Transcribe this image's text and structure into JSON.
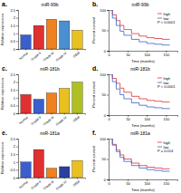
{
  "chart_data": [
    {
      "type": "bar",
      "panel": "a.",
      "title": "miR-99b",
      "y_label": "Relative expression",
      "categories": [
        "Normal",
        "Grade II",
        "Grade III",
        "Grade IV",
        "GBM"
      ],
      "values": [
        0.9,
        1.5,
        1.9,
        1.8,
        1.2
      ],
      "colors": [
        "#3a5fcd",
        "#e03030",
        "#f08020",
        "#4a90d0",
        "#e8c020"
      ],
      "ylim": [
        0,
        2.5
      ],
      "yticks": [
        0,
        0.5,
        1,
        1.5,
        2,
        2.5
      ]
    },
    {
      "type": "line",
      "panel": "b.",
      "title": "miR-99b",
      "annotation": "P < 0.0001",
      "x_label": "Time (months)",
      "y_label": "Percent survival",
      "x": [
        0,
        10,
        20,
        30,
        40,
        60,
        80,
        100,
        120,
        140,
        160
      ],
      "series": [
        {
          "name": "high",
          "color": "#e03030",
          "line_style": "step",
          "values": [
            100,
            88,
            74,
            62,
            52,
            42,
            36,
            32,
            30,
            28,
            28
          ]
        },
        {
          "name": "low",
          "color": "#3a5fcd",
          "line_style": "step",
          "values": [
            100,
            80,
            62,
            48,
            38,
            28,
            22,
            18,
            16,
            14,
            14
          ]
        }
      ],
      "xlim": [
        0,
        180
      ],
      "xticks": [
        0,
        50,
        100,
        150
      ],
      "ylim": [
        0,
        100
      ],
      "yticks": [
        0,
        50,
        100
      ],
      "legend": "upper right"
    },
    {
      "type": "bar",
      "panel": "c.",
      "title": "miR-181b",
      "y_label": "Relative expression",
      "categories": [
        "Normal",
        "Grade II",
        "Grade III",
        "Grade IV",
        "GBM"
      ],
      "values": [
        1.2,
        0.9,
        1.3,
        1.6,
        2.0
      ],
      "colors": [
        "#e03030",
        "#3a5fcd",
        "#f08020",
        "#e8c020",
        "#b0c020"
      ],
      "ylim": [
        0,
        2.5
      ],
      "yticks": [
        0,
        0.5,
        1,
        1.5,
        2,
        2.5
      ]
    },
    {
      "type": "line",
      "panel": "d.",
      "title": "miR-181b",
      "annotation": "P < 0.0001",
      "x_label": "Time (months)",
      "y_label": "Percent survival",
      "x": [
        0,
        10,
        20,
        30,
        40,
        60,
        80,
        100,
        120,
        140,
        160
      ],
      "series": [
        {
          "name": "high",
          "color": "#e03030",
          "line_style": "step",
          "values": [
            100,
            90,
            78,
            66,
            56,
            46,
            40,
            36,
            34,
            32,
            32
          ]
        },
        {
          "name": "low",
          "color": "#3a5fcd",
          "line_style": "step",
          "values": [
            100,
            82,
            64,
            50,
            40,
            30,
            24,
            20,
            18,
            16,
            16
          ]
        }
      ],
      "xlim": [
        0,
        180
      ],
      "xticks": [
        0,
        50,
        100,
        150
      ],
      "ylim": [
        0,
        100
      ],
      "yticks": [
        0,
        50,
        100
      ],
      "legend": "upper right"
    },
    {
      "type": "bar",
      "panel": "e.",
      "title": "miR-181a",
      "y_label": "Relative expression",
      "categories": [
        "Normal",
        "Grade II",
        "Grade III",
        "Grade IV",
        "GBM"
      ],
      "values": [
        1.0,
        1.8,
        0.6,
        0.7,
        1.1
      ],
      "colors": [
        "#3a5fcd",
        "#e03030",
        "#f08020",
        "#2a3f9d",
        "#e8c020"
      ],
      "ylim": [
        0,
        2.5
      ],
      "yticks": [
        0,
        0.5,
        1,
        1.5,
        2,
        2.5
      ]
    },
    {
      "type": "line",
      "panel": "f.",
      "title": "miR-181a",
      "annotation": "P = 0.014",
      "x_label": "Time (months)",
      "y_label": "Percent survival",
      "x": [
        0,
        10,
        20,
        30,
        40,
        60,
        80,
        100,
        120,
        140,
        160
      ],
      "series": [
        {
          "name": "high",
          "color": "#e03030",
          "line_style": "step",
          "values": [
            100,
            86,
            72,
            60,
            50,
            40,
            34,
            30,
            28,
            26,
            26
          ]
        },
        {
          "name": "low",
          "color": "#3a5fcd",
          "line_style": "step",
          "values": [
            100,
            84,
            68,
            54,
            44,
            34,
            28,
            24,
            22,
            20,
            20
          ]
        }
      ],
      "xlim": [
        0,
        180
      ],
      "xticks": [
        0,
        50,
        100,
        150
      ],
      "ylim": [
        0,
        100
      ],
      "yticks": [
        0,
        50,
        100
      ],
      "legend": "upper right"
    }
  ]
}
